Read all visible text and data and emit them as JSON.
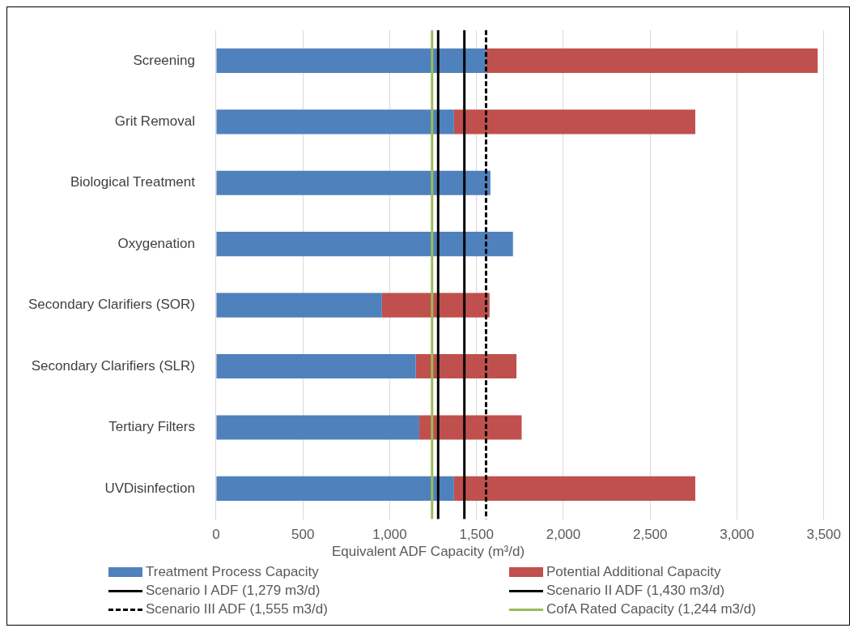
{
  "chart_data": {
    "type": "bar",
    "orientation": "horizontal",
    "stacked": true,
    "xlabel": "Equivalent ADF Capacity (m³/d)",
    "categories": [
      "Screening",
      "Grit Removal",
      "Biological Treatment",
      "Oxygenation",
      "Secondary Clarifiers (SOR)",
      "Secondary Clarifiers (SLR)",
      "Tertiary Filters",
      "UVDisinfection"
    ],
    "series": [
      {
        "name": "Treatment Process Capacity",
        "color": "#4f81bd",
        "values": [
          1555,
          1370,
          1580,
          1710,
          955,
          1150,
          1170,
          1370
        ]
      },
      {
        "name": "Potential Additional Capacity",
        "color": "#c0504d",
        "values": [
          1910,
          1390,
          null,
          null,
          620,
          580,
          590,
          1390
        ]
      }
    ],
    "ref_lines": [
      {
        "axis": "x",
        "value": 1279,
        "label": "Scenario I ADF (1,279 m3/d)",
        "color": "#000000",
        "line_style": "solid"
      },
      {
        "axis": "x",
        "value": 1430,
        "label": "Scenario II ADF (1,430 m3/d)",
        "color": "#000000",
        "line_style": "solid"
      },
      {
        "axis": "x",
        "value": 1555,
        "label": "Scenario III ADF (1,555 m3/d)",
        "color": "#000000",
        "line_style": "dashed"
      },
      {
        "axis": "x",
        "value": 1244,
        "label": "CofA Rated Capacity (1,244 m3/d)",
        "color": "#9bbb59",
        "line_style": "solid"
      }
    ],
    "xlim": [
      0,
      3500
    ],
    "xticks": [
      {
        "value": 0,
        "label": "0"
      },
      {
        "value": 500,
        "label": "500"
      },
      {
        "value": 1000,
        "label": "1,000"
      },
      {
        "value": 1500,
        "label": "1,500"
      },
      {
        "value": 2000,
        "label": "2,000"
      },
      {
        "value": 2500,
        "label": "2,500"
      },
      {
        "value": 3000,
        "label": "3,000"
      },
      {
        "value": 3500,
        "label": "3,500"
      }
    ],
    "grid": "x",
    "legend": "bottom"
  }
}
